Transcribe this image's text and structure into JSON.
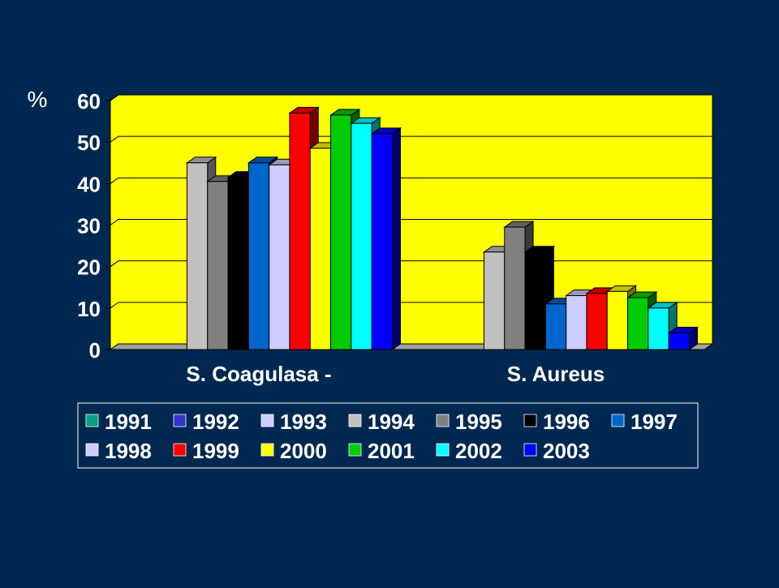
{
  "chart_data": {
    "type": "bar",
    "unit_label": "%",
    "categories": [
      "S. Coagulasa -",
      "S. Aureus"
    ],
    "ylim": [
      0,
      60
    ],
    "yticks": [
      0,
      10,
      20,
      30,
      40,
      50,
      60
    ],
    "grid": true,
    "legend_position": "bottom",
    "plot_background": "#FFFF00",
    "series": [
      {
        "name": "1991",
        "color": "#00A080",
        "values": [
          0,
          0
        ]
      },
      {
        "name": "1992",
        "color": "#3333CC",
        "values": [
          0,
          0
        ]
      },
      {
        "name": "1993",
        "color": "#CCCCFF",
        "values": [
          0,
          0
        ]
      },
      {
        "name": "1994",
        "color": "#C0C0C0",
        "values": [
          45,
          23.5
        ]
      },
      {
        "name": "1995",
        "color": "#808080",
        "values": [
          40.5,
          29.5
        ]
      },
      {
        "name": "1996",
        "color": "#000000",
        "values": [
          41.5,
          23.5
        ]
      },
      {
        "name": "1997",
        "color": "#0066CC",
        "values": [
          45,
          11
        ]
      },
      {
        "name": "1998",
        "color": "#CCCCFF",
        "values": [
          44.5,
          13
        ]
      },
      {
        "name": "1999",
        "color": "#FF0000",
        "values": [
          57,
          13.5
        ]
      },
      {
        "name": "2000",
        "color": "#FFFF00",
        "values": [
          48.5,
          14
        ]
      },
      {
        "name": "2001",
        "color": "#00CC00",
        "values": [
          56.5,
          12.5
        ]
      },
      {
        "name": "2002",
        "color": "#00FFFF",
        "values": [
          54.5,
          10
        ]
      },
      {
        "name": "2003",
        "color": "#0000FF",
        "values": [
          52,
          4
        ]
      }
    ]
  }
}
